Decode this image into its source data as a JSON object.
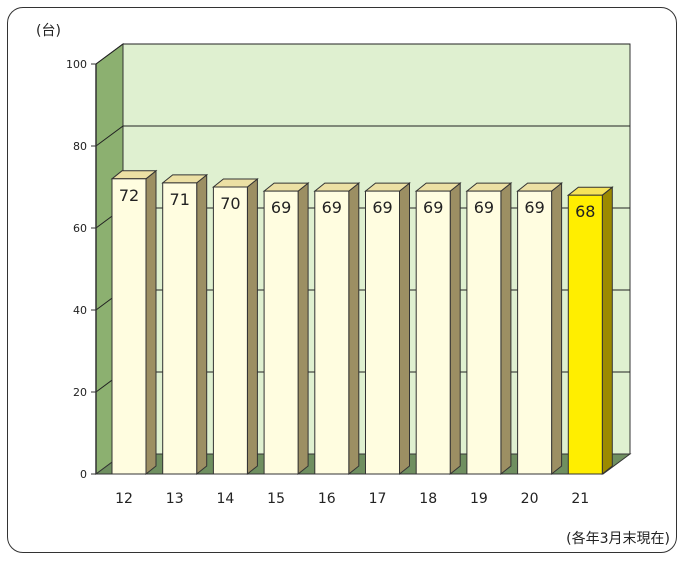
{
  "chart_data": {
    "type": "bar",
    "unit_label": "(台)",
    "note": "(各年3月末現在)",
    "categories": [
      "12",
      "13",
      "14",
      "15",
      "16",
      "17",
      "18",
      "19",
      "20",
      "21"
    ],
    "values": [
      72,
      71,
      70,
      69,
      69,
      69,
      69,
      69,
      69,
      68
    ],
    "data_labels": [
      "72",
      "71",
      "70",
      "69",
      "69",
      "69",
      "69",
      "69",
      "69",
      "68"
    ],
    "yticks": [
      0,
      20,
      40,
      60,
      80,
      100
    ],
    "ylim": [
      0,
      100
    ],
    "grid": true,
    "highlight_index": 9,
    "colors": {
      "bar_face": "#fffde0",
      "bar_top": "#ece0a4",
      "bar_side": "#9c8f63",
      "highlight_face": "#ffee00",
      "highlight_top": "#f5e35a",
      "highlight_side": "#9c8a00",
      "back_wall": "#dff0d0",
      "left_wall": "#8cb070",
      "floor": "#6f8f60",
      "grid": "#222222"
    }
  }
}
